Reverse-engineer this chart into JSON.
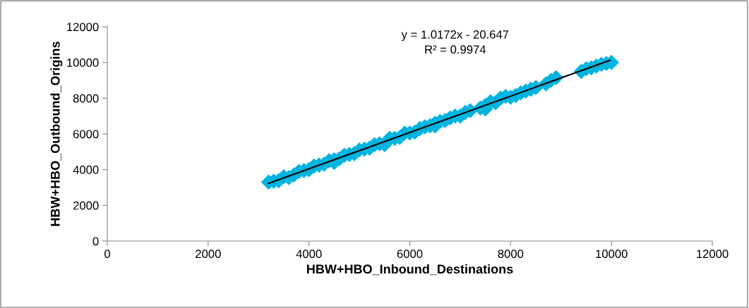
{
  "chart_data": {
    "type": "scatter",
    "xlabel": "HBW+HBO_Inbound_Destinations",
    "ylabel": "HBW+HBO_Outbound_Origins",
    "xlim": [
      0,
      12000
    ],
    "ylim": [
      0,
      12000
    ],
    "xticks": [
      0,
      2000,
      4000,
      6000,
      8000,
      10000,
      12000
    ],
    "yticks": [
      0,
      2000,
      4000,
      6000,
      8000,
      10000,
      12000
    ],
    "grid": false,
    "marker": "diamond",
    "annotations": [
      "y = 1.0172x - 20.647",
      "R² = 0.9974"
    ],
    "series": [
      {
        "color": "#00b4e0",
        "x": [
          3200,
          3300,
          3400,
          3500,
          3600,
          3700,
          3800,
          3900,
          4000,
          4100,
          4200,
          4300,
          4400,
          4500,
          4500,
          4600,
          4700,
          4800,
          4900,
          5000,
          5100,
          5200,
          5300,
          5400,
          5500,
          5600,
          5700,
          5800,
          5900,
          6000,
          6100,
          6200,
          6300,
          6400,
          6500,
          6500,
          6600,
          6700,
          6800,
          6900,
          7000,
          7100,
          7200,
          7400,
          7500,
          7500,
          7600,
          7700,
          7800,
          7900,
          8000,
          8100,
          8200,
          8300,
          8400,
          8500,
          8700,
          8800,
          8900,
          9400,
          9500,
          9600,
          9700,
          9800,
          9900,
          10000
        ],
        "values": [
          3300,
          3350,
          3380,
          3600,
          3550,
          3700,
          3900,
          3950,
          4000,
          4200,
          4250,
          4300,
          4500,
          4550,
          4400,
          4600,
          4800,
          4850,
          4900,
          5100,
          5150,
          5200,
          5400,
          5450,
          5400,
          5750,
          5750,
          5800,
          6050,
          6050,
          6100,
          6300,
          6400,
          6450,
          6600,
          6450,
          6700,
          6750,
          6900,
          7000,
          7000,
          7200,
          7300,
          7450,
          7600,
          7400,
          7800,
          7750,
          8000,
          8100,
          8050,
          8150,
          8300,
          8400,
          8500,
          8600,
          8800,
          9000,
          9150,
          9500,
          9650,
          9700,
          9800,
          9900,
          9950,
          10000
        ]
      },
      {
        "type": "line",
        "color": "#000000",
        "x": [
          3200,
          9970
        ],
        "values": [
          3230,
          10120
        ],
        "marker": "none"
      }
    ]
  }
}
